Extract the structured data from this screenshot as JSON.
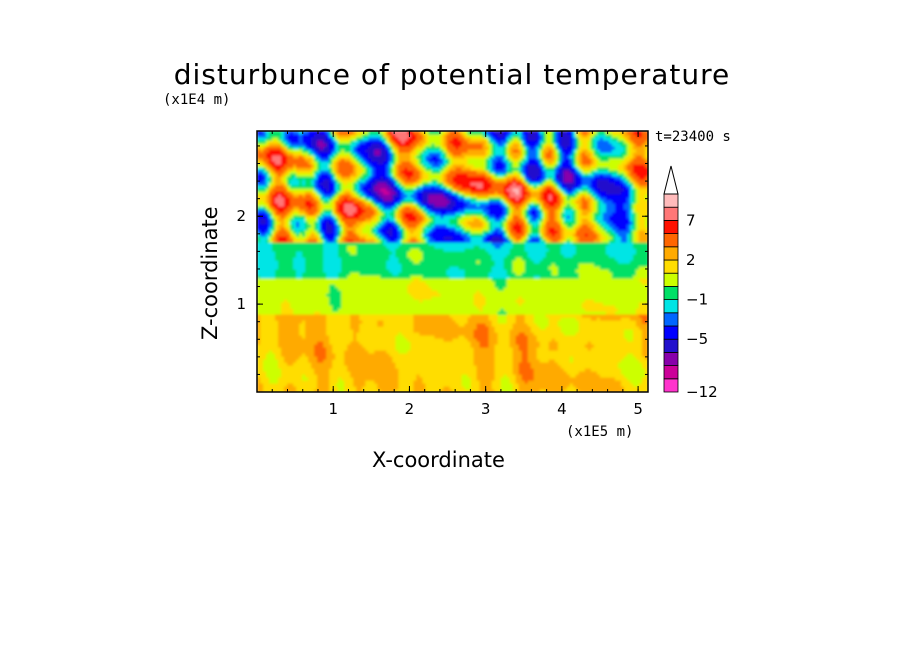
{
  "chart_data": {
    "type": "heatmap",
    "title": "disturbunce of potential temperature",
    "xlabel": "X-coordinate",
    "ylabel": "Z-coordinate",
    "x_scale": "(x1E5 m)",
    "y_scale": "(x1E4 m)",
    "time_label": "t=23400 s",
    "xlim": [
      0,
      5.13
    ],
    "ylim": [
      0,
      2.97
    ],
    "x_ticks": [
      "1",
      "2",
      "3",
      "4",
      "5"
    ],
    "x_tick_values": [
      1,
      2,
      3,
      4,
      5
    ],
    "y_ticks": [
      "1",
      "2"
    ],
    "y_tick_values": [
      1,
      2
    ],
    "colorbar": {
      "levels": [
        -12,
        -9,
        -7,
        -5,
        -3,
        -2,
        -1,
        0,
        1,
        2,
        3,
        5,
        7,
        9
      ],
      "labels": [
        {
          "text": "7",
          "value": 7
        },
        {
          "text": "2",
          "value": 2
        },
        {
          "text": "−1",
          "value": -1
        },
        {
          "text": "−5",
          "value": -5
        },
        {
          "text": "−12",
          "value": -12
        }
      ],
      "colors": [
        "#ff33cc",
        "#cc0099",
        "#8800aa",
        "#2211cc",
        "#0000ff",
        "#0066ff",
        "#00e5e5",
        "#00e066",
        "#ccff00",
        "#ffdd00",
        "#ffaa00",
        "#ff6600",
        "#ff1100",
        "#ff7777",
        "#ffbbbb"
      ],
      "extend_top": true
    },
    "bands": [
      {
        "z_range": [
          0,
          0.9
        ],
        "dominant_values": [
          1,
          2
        ],
        "description_colors": [
          "#ffaa00",
          "#ffdd00"
        ]
      },
      {
        "z_range": [
          0.9,
          1.3
        ],
        "dominant_values": [
          0,
          1
        ],
        "description_colors": [
          "#ccff00"
        ]
      },
      {
        "z_range": [
          1.3,
          1.7
        ],
        "dominant_values": [
          -1,
          0
        ],
        "description_colors": [
          "#00e066",
          "#00e5e5"
        ]
      },
      {
        "z_range": [
          1.7,
          2.97
        ],
        "dominant_values": [
          -5,
          5
        ],
        "description_colors": [
          "#0000ff",
          "#ff6600"
        ]
      }
    ],
    "grid": false,
    "legend": "right"
  }
}
